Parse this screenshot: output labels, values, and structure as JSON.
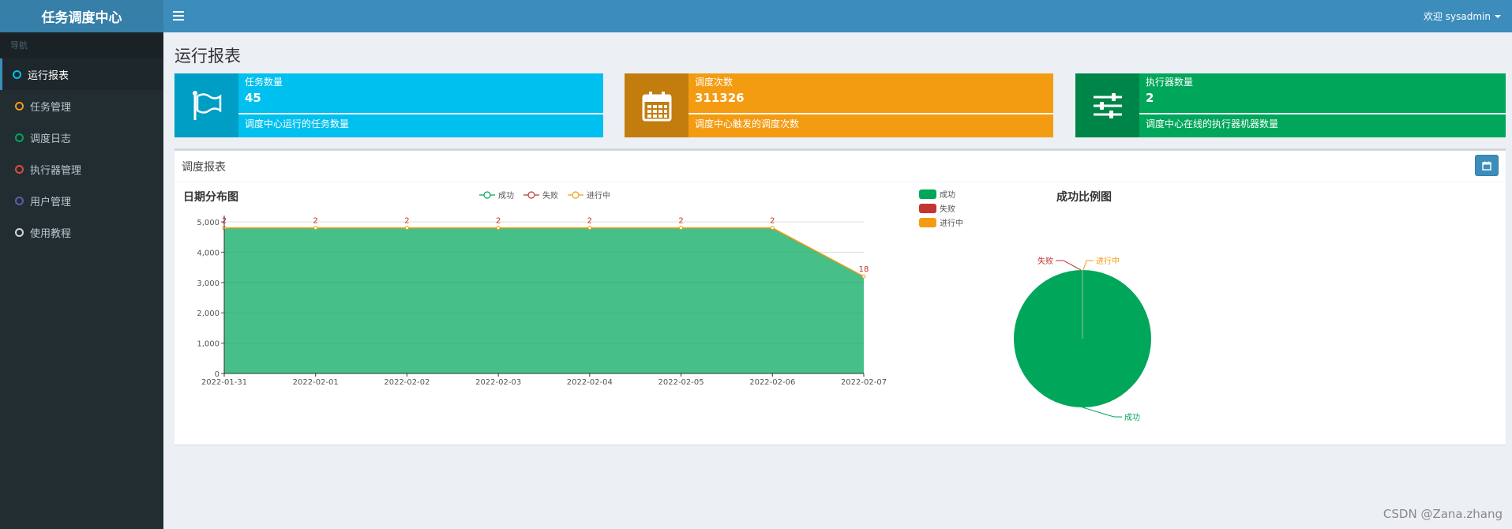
{
  "app": {
    "title": "任务调度中心"
  },
  "sidebar": {
    "header": "导航",
    "items": [
      {
        "label": "运行报表",
        "color": "#00c0ef",
        "active": true
      },
      {
        "label": "任务管理",
        "color": "#f39c12"
      },
      {
        "label": "调度日志",
        "color": "#00a65a"
      },
      {
        "label": "执行器管理",
        "color": "#dd4b39"
      },
      {
        "label": "用户管理",
        "color": "#605ca8"
      },
      {
        "label": "使用教程",
        "color": "#d2d6de"
      }
    ]
  },
  "topbar": {
    "user": "欢迎 sysadmin"
  },
  "page": {
    "title": "运行报表"
  },
  "info_boxes": [
    {
      "label": "任务数量",
      "number": "45",
      "desc": "调度中心运行的任务数量",
      "icon": "flag-icon",
      "color": "#00c0ef",
      "icon_bg": "#009dc4"
    },
    {
      "label": "调度次数",
      "number": "311326",
      "desc": "调度中心触发的调度次数",
      "icon": "calendar-icon",
      "color": "#f39c12",
      "icon_bg": "#c27d0e"
    },
    {
      "label": "执行器数量",
      "number": "2",
      "desc": "调度中心在线的执行器机器数量",
      "icon": "sliders-icon",
      "color": "#00a65a",
      "icon_bg": "#008548"
    }
  ],
  "report": {
    "title": "调度报表"
  },
  "chart_data": [
    {
      "type": "area",
      "title": "日期分布图",
      "categories": [
        "2022-01-31",
        "2022-02-01",
        "2022-02-02",
        "2022-02-03",
        "2022-02-04",
        "2022-02-05",
        "2022-02-06",
        "2022-02-07"
      ],
      "ylim": [
        0,
        5000
      ],
      "yticks": [
        "0",
        "1,000",
        "2,000",
        "3,000",
        "4,000",
        "5,000"
      ],
      "series": [
        {
          "name": "成功",
          "color": "#00a65a",
          "values": [
            4800,
            4800,
            4800,
            4800,
            4800,
            4800,
            4800,
            3200
          ]
        },
        {
          "name": "失败",
          "color": "#c23531",
          "values": [
            2,
            2,
            2,
            2,
            2,
            2,
            2,
            18
          ]
        },
        {
          "name": "进行中",
          "color": "#f39c12",
          "values": [
            0,
            0,
            0,
            0,
            0,
            0,
            0,
            0
          ]
        }
      ],
      "data_labels": [
        "2",
        "2",
        "2",
        "2",
        "2",
        "2",
        "2",
        "18"
      ],
      "legend": "top-center",
      "grid": true
    },
    {
      "type": "pie",
      "title": "成功比例图",
      "slices": [
        {
          "name": "成功",
          "value": 99.99,
          "color": "#00a65a"
        },
        {
          "name": "失败",
          "value": 0.005,
          "color": "#c23531"
        },
        {
          "name": "进行中",
          "value": 0.005,
          "color": "#f39c12"
        }
      ],
      "legend": "top-left"
    }
  ],
  "watermark": "CSDN @Zana.zhang"
}
